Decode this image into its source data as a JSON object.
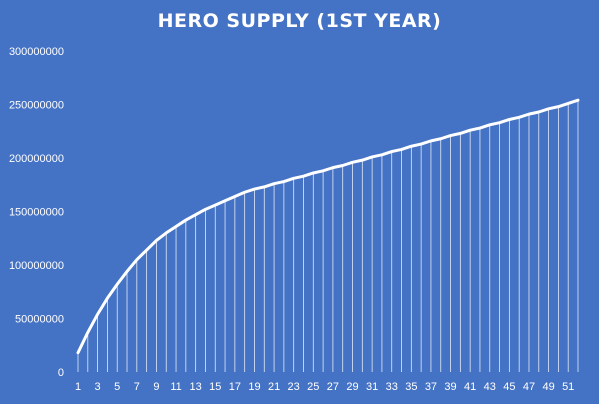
{
  "chart_data": {
    "type": "area",
    "title": "HERO SUPPLY (1ST YEAR)",
    "xlabel": "",
    "ylabel": "",
    "x": [
      1,
      2,
      3,
      4,
      5,
      6,
      7,
      8,
      9,
      10,
      11,
      12,
      13,
      14,
      15,
      16,
      17,
      18,
      19,
      20,
      21,
      22,
      23,
      24,
      25,
      26,
      27,
      28,
      29,
      30,
      31,
      32,
      33,
      34,
      35,
      36,
      37,
      38,
      39,
      40,
      41,
      42,
      43,
      44,
      45,
      46,
      47,
      48,
      49,
      50,
      51,
      52
    ],
    "x_tick_labels": [
      "1",
      "3",
      "5",
      "7",
      "9",
      "11",
      "13",
      "15",
      "17",
      "19",
      "21",
      "23",
      "25",
      "27",
      "29",
      "31",
      "33",
      "35",
      "37",
      "39",
      "41",
      "43",
      "45",
      "47",
      "49",
      "51"
    ],
    "y_tick_labels": [
      "0",
      "50000000",
      "100000000",
      "150000000",
      "200000000",
      "250000000",
      "300000000"
    ],
    "ylim": [
      0,
      300000000
    ],
    "grid": false,
    "series": [
      {
        "values": [
          18000000,
          37000000,
          54000000,
          69000000,
          82000000,
          94000000,
          105000000,
          114000000,
          123000000,
          130000000,
          136000000,
          142000000,
          147000000,
          152000000,
          156000000,
          160000000,
          164000000,
          168000000,
          171000000,
          173000000,
          176000000,
          178000000,
          181000000,
          183000000,
          186000000,
          188000000,
          191000000,
          193000000,
          196000000,
          198000000,
          201000000,
          203000000,
          206000000,
          208000000,
          211000000,
          213000000,
          216000000,
          218000000,
          221000000,
          223000000,
          226000000,
          228000000,
          231000000,
          233000000,
          236000000,
          238000000,
          241000000,
          243000000,
          246000000,
          248000000,
          251000000,
          254000000
        ]
      }
    ],
    "colors": {
      "background": "#4472C4",
      "line": "#ffffff",
      "drop_lines": "#ffffff"
    }
  }
}
